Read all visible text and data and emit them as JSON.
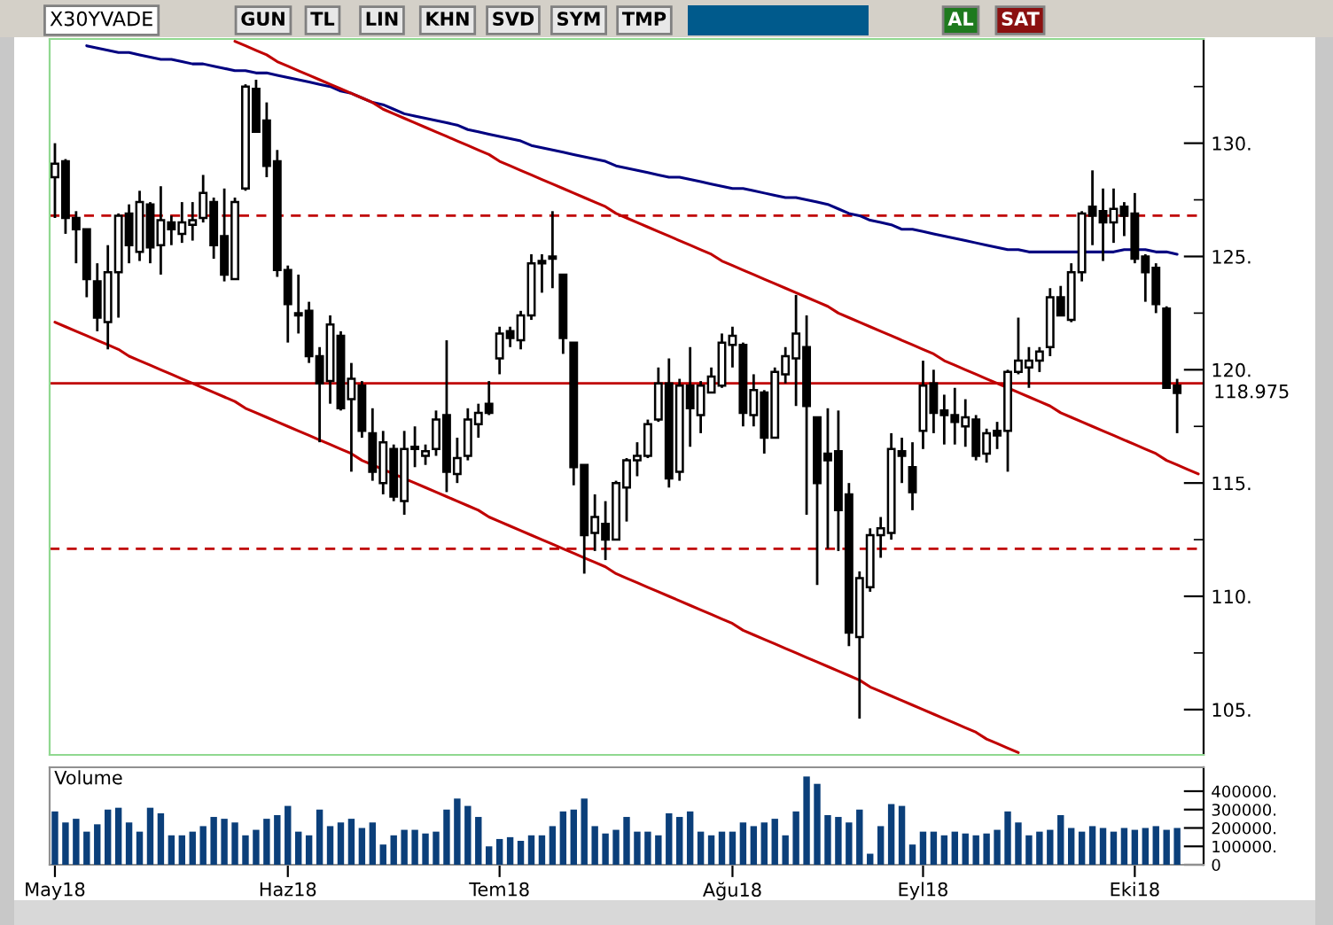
{
  "chart_data": [
    {
      "type": "candlestick",
      "title": "X30YVADE",
      "categories": [
        null,
        null,
        null,
        null,
        null,
        null,
        null,
        null,
        null,
        null,
        null,
        null,
        null,
        null,
        null,
        null,
        null,
        null,
        null,
        null,
        null,
        null,
        null,
        null,
        null,
        null,
        null,
        null,
        null,
        null,
        null,
        null,
        null,
        null,
        null,
        null,
        null,
        null,
        null,
        null,
        null,
        null,
        null,
        null,
        null,
        null,
        null,
        null,
        null,
        null,
        null,
        null,
        null,
        null,
        null,
        null,
        null,
        null,
        null,
        null,
        null,
        null,
        null,
        null,
        null,
        null,
        null,
        null,
        null,
        null,
        null,
        null,
        null,
        null,
        null,
        null,
        null,
        null,
        null,
        null,
        null,
        null,
        null,
        null,
        null,
        null,
        null,
        null,
        null,
        null,
        null,
        null,
        null,
        null,
        null,
        null,
        null,
        null,
        null,
        null,
        null,
        null,
        null,
        null,
        null,
        null,
        null,
        null,
        null
      ],
      "ohlc": [
        [
          128.5,
          130.0,
          126.7,
          129.1
        ],
        [
          129.2,
          129.3,
          126.0,
          126.7
        ],
        [
          126.7,
          127.0,
          124.7,
          126.2
        ],
        [
          126.2,
          126.2,
          123.2,
          124.0
        ],
        [
          123.9,
          124.7,
          121.7,
          122.3
        ],
        [
          122.1,
          125.5,
          120.9,
          124.3
        ],
        [
          124.3,
          126.9,
          122.3,
          126.8
        ],
        [
          126.9,
          127.3,
          124.7,
          125.5
        ],
        [
          125.2,
          127.9,
          124.8,
          127.4
        ],
        [
          127.3,
          127.4,
          124.7,
          125.4
        ],
        [
          125.5,
          128.1,
          124.2,
          126.6
        ],
        [
          126.5,
          126.8,
          125.5,
          126.2
        ],
        [
          126.0,
          127.4,
          125.6,
          126.5
        ],
        [
          126.4,
          127.4,
          125.7,
          126.6
        ],
        [
          126.7,
          128.6,
          126.5,
          127.8
        ],
        [
          127.4,
          127.6,
          124.9,
          125.5
        ],
        [
          125.9,
          128.0,
          123.9,
          124.2
        ],
        [
          124.0,
          127.6,
          124.0,
          127.4
        ],
        [
          128.0,
          132.6,
          127.9,
          132.5
        ],
        [
          132.4,
          132.8,
          130.5,
          130.5
        ],
        [
          131.0,
          131.8,
          128.5,
          129.0
        ],
        [
          129.2,
          129.7,
          124.1,
          124.4
        ],
        [
          124.4,
          124.6,
          121.2,
          122.9
        ],
        [
          122.5,
          124.2,
          121.6,
          122.4
        ],
        [
          122.6,
          123.0,
          120.3,
          120.6
        ],
        [
          120.6,
          121.0,
          116.8,
          119.4
        ],
        [
          119.5,
          122.4,
          118.5,
          122.0
        ],
        [
          121.5,
          121.7,
          118.2,
          118.3
        ],
        [
          118.7,
          120.3,
          115.5,
          119.6
        ],
        [
          119.3,
          119.5,
          117.0,
          117.3
        ],
        [
          117.2,
          118.3,
          115.1,
          115.5
        ],
        [
          115.0,
          117.3,
          114.5,
          116.8
        ],
        [
          116.5,
          116.7,
          114.2,
          114.4
        ],
        [
          114.2,
          117.3,
          113.6,
          116.5
        ],
        [
          116.6,
          117.5,
          115.7,
          116.5
        ],
        [
          116.2,
          116.7,
          115.8,
          116.4
        ],
        [
          116.5,
          118.2,
          116.2,
          117.8
        ],
        [
          118.0,
          121.3,
          114.6,
          115.5
        ],
        [
          115.4,
          117.0,
          115.0,
          116.1
        ],
        [
          116.2,
          118.3,
          116.0,
          117.8
        ],
        [
          117.6,
          118.5,
          117.0,
          118.1
        ],
        [
          118.5,
          119.5,
          118.0,
          118.1
        ],
        [
          120.5,
          121.9,
          119.8,
          121.6
        ],
        [
          121.7,
          121.9,
          121.0,
          121.4
        ],
        [
          121.3,
          122.6,
          120.9,
          122.4
        ],
        [
          122.4,
          125.1,
          122.2,
          124.7
        ],
        [
          124.8,
          125.1,
          123.4,
          124.7
        ],
        [
          124.9,
          127.0,
          123.6,
          125.0
        ],
        [
          124.2,
          124.2,
          120.7,
          121.4
        ],
        [
          121.2,
          121.2,
          114.9,
          115.7
        ],
        [
          115.8,
          115.8,
          111.0,
          112.7
        ],
        [
          112.8,
          114.5,
          112.0,
          113.5
        ],
        [
          113.2,
          114.2,
          111.6,
          112.5
        ],
        [
          112.5,
          115.1,
          112.5,
          115.0
        ],
        [
          114.8,
          116.1,
          113.3,
          116.0
        ],
        [
          116.0,
          116.8,
          115.3,
          116.2
        ],
        [
          116.2,
          117.8,
          116.1,
          117.6
        ],
        [
          117.8,
          120.1,
          117.7,
          119.4
        ],
        [
          119.4,
          120.5,
          114.8,
          115.2
        ],
        [
          115.5,
          119.6,
          115.1,
          119.3
        ],
        [
          119.3,
          121.0,
          116.6,
          118.3
        ],
        [
          118.0,
          119.5,
          117.2,
          119.3
        ],
        [
          119.0,
          120.1,
          119.0,
          119.7
        ],
        [
          119.3,
          121.6,
          119.2,
          121.2
        ],
        [
          121.1,
          121.9,
          120.1,
          121.5
        ],
        [
          121.1,
          121.2,
          117.5,
          118.1
        ],
        [
          118.0,
          119.8,
          117.5,
          119.1
        ],
        [
          119.0,
          119.1,
          116.3,
          117.0
        ],
        [
          117.0,
          120.1,
          117.0,
          119.9
        ],
        [
          119.8,
          121.0,
          119.4,
          120.6
        ],
        [
          120.5,
          123.3,
          118.4,
          121.6
        ],
        [
          121.0,
          122.4,
          113.6,
          118.4
        ],
        [
          117.9,
          117.9,
          110.5,
          115.0
        ],
        [
          116.3,
          118.3,
          112.1,
          116.0
        ],
        [
          116.4,
          118.2,
          112.0,
          113.8
        ],
        [
          114.5,
          115.0,
          107.8,
          108.4
        ],
        [
          108.2,
          111.1,
          104.6,
          110.8
        ],
        [
          110.4,
          113.0,
          110.2,
          112.7
        ],
        [
          112.7,
          113.5,
          111.7,
          113.0
        ],
        [
          112.8,
          117.2,
          112.5,
          116.5
        ],
        [
          116.4,
          117.0,
          115.0,
          116.2
        ],
        [
          115.7,
          116.8,
          113.8,
          114.6
        ],
        [
          117.3,
          120.4,
          116.5,
          119.3
        ],
        [
          119.4,
          120.0,
          117.2,
          118.1
        ],
        [
          118.2,
          118.9,
          116.7,
          118.0
        ],
        [
          118.0,
          119.2,
          116.7,
          117.7
        ],
        [
          117.5,
          118.7,
          116.6,
          117.9
        ],
        [
          117.8,
          118.0,
          116.0,
          116.2
        ],
        [
          116.3,
          117.4,
          115.9,
          117.2
        ],
        [
          117.3,
          117.7,
          116.5,
          117.1
        ],
        [
          117.3,
          120.0,
          115.5,
          119.9
        ],
        [
          119.9,
          122.3,
          119.8,
          120.4
        ],
        [
          120.1,
          121.0,
          119.2,
          120.4
        ],
        [
          120.4,
          121.0,
          119.9,
          120.8
        ],
        [
          121.0,
          123.6,
          120.6,
          123.2
        ],
        [
          123.2,
          123.7,
          122.4,
          122.4
        ],
        [
          122.2,
          124.7,
          122.1,
          124.3
        ],
        [
          124.3,
          127.0,
          123.9,
          126.9
        ],
        [
          127.2,
          128.8,
          125.5,
          126.8
        ],
        [
          127.0,
          128.0,
          124.8,
          126.5
        ],
        [
          126.5,
          128.0,
          125.6,
          127.1
        ],
        [
          127.2,
          127.4,
          125.9,
          126.8
        ],
        [
          126.9,
          127.8,
          124.7,
          124.9
        ],
        [
          125.0,
          125.1,
          123.0,
          124.3
        ],
        [
          124.5,
          124.7,
          122.5,
          122.9
        ],
        [
          122.7,
          122.8,
          119.2,
          119.2
        ],
        [
          119.3,
          119.6,
          117.2,
          118.975
        ],
        null,
        null
      ],
      "series": [
        {
          "type": "line",
          "color": "#000080",
          "values": [
            null,
            null,
            null,
            134.3,
            134.2,
            134.1,
            134.0,
            134.0,
            133.9,
            133.8,
            133.7,
            133.7,
            133.6,
            133.5,
            133.5,
            133.4,
            133.3,
            133.2,
            133.2,
            133.1,
            133.1,
            133.0,
            132.9,
            132.8,
            132.7,
            132.6,
            132.5,
            132.3,
            132.2,
            132.0,
            131.8,
            131.7,
            131.5,
            131.3,
            131.2,
            131.1,
            131.0,
            130.9,
            130.8,
            130.6,
            130.5,
            130.4,
            130.3,
            130.2,
            130.1,
            129.9,
            129.8,
            129.7,
            129.6,
            129.5,
            129.4,
            129.3,
            129.2,
            129.0,
            128.9,
            128.8,
            128.7,
            128.6,
            128.5,
            128.5,
            128.4,
            128.3,
            128.2,
            128.1,
            128.0,
            128.0,
            127.9,
            127.8,
            127.7,
            127.6,
            127.6,
            127.5,
            127.4,
            127.3,
            127.1,
            126.9,
            126.8,
            126.6,
            126.5,
            126.4,
            126.2,
            126.2,
            126.1,
            126.0,
            125.9,
            125.8,
            125.7,
            125.6,
            125.5,
            125.4,
            125.3,
            125.3,
            125.2,
            125.2,
            125.2,
            125.2,
            125.2,
            125.2,
            125.2,
            125.2,
            125.2,
            125.3,
            125.3,
            125.3,
            125.2,
            125.2,
            125.1,
            null,
            null
          ]
        },
        {
          "type": "line",
          "color": "#c00000",
          "values": [
            null,
            null,
            null,
            null,
            null,
            null,
            null,
            null,
            null,
            null,
            null,
            null,
            null,
            null,
            null,
            null,
            null,
            134.5,
            134.3,
            134.1,
            133.9,
            133.6,
            133.4,
            133.2,
            133.0,
            132.8,
            132.6,
            132.4,
            132.2,
            132.0,
            131.8,
            131.5,
            131.3,
            131.1,
            130.9,
            130.7,
            130.5,
            130.3,
            130.1,
            129.9,
            129.7,
            129.5,
            129.2,
            129.0,
            128.8,
            128.6,
            128.4,
            128.2,
            128.0,
            127.8,
            127.6,
            127.4,
            127.2,
            126.9,
            126.7,
            126.5,
            126.3,
            126.1,
            125.9,
            125.7,
            125.5,
            125.3,
            125.1,
            124.8,
            124.6,
            124.4,
            124.2,
            124.0,
            123.8,
            123.6,
            123.4,
            123.2,
            123.0,
            122.8,
            122.5,
            122.3,
            122.1,
            121.9,
            121.7,
            121.5,
            121.3,
            121.1,
            120.9,
            120.7,
            120.4,
            120.2,
            120.0,
            119.8,
            119.6,
            119.4,
            119.2,
            119.0,
            118.8,
            118.6,
            118.4,
            118.1,
            117.9,
            117.7,
            117.5,
            117.3,
            117.1,
            116.9,
            116.7,
            116.5,
            116.3,
            116.0,
            115.8,
            115.6,
            115.4
          ]
        },
        {
          "type": "line",
          "color": "#c00000",
          "values": [
            122.1,
            121.9,
            121.7,
            121.5,
            121.3,
            121.1,
            120.9,
            120.6,
            120.4,
            120.2,
            120.0,
            119.8,
            119.6,
            119.4,
            119.2,
            119.0,
            118.8,
            118.6,
            118.3,
            118.1,
            117.9,
            117.7,
            117.5,
            117.3,
            117.1,
            116.9,
            116.7,
            116.5,
            116.3,
            116.0,
            115.8,
            115.6,
            115.4,
            115.2,
            115.0,
            114.8,
            114.6,
            114.4,
            114.2,
            114.0,
            113.8,
            113.5,
            113.3,
            113.1,
            112.9,
            112.7,
            112.5,
            112.3,
            112.1,
            111.9,
            111.7,
            111.5,
            111.3,
            111.0,
            110.8,
            110.6,
            110.4,
            110.2,
            110.0,
            109.8,
            109.6,
            109.4,
            109.2,
            109.0,
            108.8,
            108.5,
            108.3,
            108.1,
            107.9,
            107.7,
            107.5,
            107.3,
            107.1,
            106.9,
            106.7,
            106.5,
            106.3,
            106.0,
            105.8,
            105.6,
            105.4,
            105.2,
            105.0,
            104.8,
            104.6,
            104.4,
            104.2,
            104.0,
            103.7,
            103.5,
            103.3,
            103.1,
            null,
            null,
            null,
            null,
            null,
            null,
            null,
            null,
            null,
            null,
            null,
            null,
            null,
            null,
            null,
            null,
            null
          ]
        }
      ],
      "ref_lines": [
        {
          "axis": "y",
          "value": 119.4,
          "color": "#c00000",
          "line_style": "solid"
        },
        {
          "axis": "y",
          "value": 126.8,
          "color": "#c00000",
          "line_style": "dashed"
        },
        {
          "axis": "y",
          "value": 112.1,
          "color": "#c00000",
          "line_style": "dashed"
        }
      ],
      "ylim": [
        103.0,
        134.6
      ],
      "yticks": [
        {
          "value": 105,
          "label": "105."
        },
        {
          "value": 107.5,
          "label": null
        },
        {
          "value": 110,
          "label": "110."
        },
        {
          "value": 112.5,
          "label": null
        },
        {
          "value": 115,
          "label": "115."
        },
        {
          "value": 117.5,
          "label": null
        },
        {
          "value": 120,
          "label": "120."
        },
        {
          "value": 122.5,
          "label": null
        },
        {
          "value": 125,
          "label": "125."
        },
        {
          "value": 127.5,
          "label": null
        },
        {
          "value": 130,
          "label": "130."
        },
        {
          "value": 132.5,
          "label": null
        }
      ],
      "annotations": [
        "GUN",
        "TL",
        "LIN",
        "KHN",
        "SVD",
        "SYM",
        "TMP",
        "AL",
        "SAT",
        "118.975"
      ]
    },
    {
      "type": "bar",
      "title": "Volume",
      "categories": [
        "May18",
        null,
        null,
        null,
        null,
        null,
        null,
        null,
        null,
        null,
        null,
        null,
        null,
        null,
        null,
        null,
        null,
        null,
        null,
        null,
        null,
        null,
        "Haz18",
        null,
        null,
        null,
        null,
        null,
        null,
        null,
        null,
        null,
        null,
        null,
        null,
        null,
        null,
        null,
        null,
        null,
        null,
        null,
        "Tem18",
        null,
        null,
        null,
        null,
        null,
        null,
        null,
        null,
        null,
        null,
        null,
        null,
        null,
        null,
        null,
        null,
        null,
        null,
        null,
        null,
        null,
        "Ağu18",
        null,
        null,
        null,
        null,
        null,
        null,
        null,
        null,
        null,
        null,
        null,
        null,
        null,
        null,
        null,
        null,
        null,
        "Eyl18",
        null,
        null,
        null,
        null,
        null,
        null,
        null,
        null,
        null,
        null,
        null,
        null,
        null,
        null,
        null,
        null,
        null,
        null,
        null,
        "Eki18",
        null,
        null,
        null,
        null,
        null,
        null
      ],
      "values": [
        290000,
        230000,
        250000,
        180000,
        220000,
        300000,
        310000,
        230000,
        180000,
        310000,
        280000,
        160000,
        160000,
        180000,
        210000,
        260000,
        250000,
        230000,
        160000,
        190000,
        250000,
        270000,
        320000,
        180000,
        160000,
        300000,
        210000,
        230000,
        250000,
        200000,
        230000,
        110000,
        160000,
        190000,
        190000,
        170000,
        180000,
        300000,
        360000,
        320000,
        260000,
        100000,
        140000,
        150000,
        130000,
        160000,
        160000,
        210000,
        290000,
        300000,
        360000,
        210000,
        170000,
        190000,
        260000,
        180000,
        180000,
        160000,
        280000,
        260000,
        290000,
        180000,
        160000,
        180000,
        180000,
        230000,
        210000,
        230000,
        250000,
        160000,
        290000,
        480000,
        440000,
        270000,
        260000,
        230000,
        300000,
        60000,
        210000,
        330000,
        320000,
        110000,
        180000,
        180000,
        160000,
        180000,
        170000,
        160000,
        170000,
        190000,
        290000,
        230000,
        160000,
        180000,
        190000,
        270000,
        200000,
        180000,
        210000,
        200000,
        180000,
        200000,
        190000,
        200000,
        210000,
        190000,
        200000,
        null,
        null
      ],
      "color": "#0b3f7a",
      "ylim": [
        0,
        530000
      ],
      "yticks": [
        {
          "value": 0,
          "label": "0"
        },
        {
          "value": 100000,
          "label": "100000."
        },
        {
          "value": 200000,
          "label": "200000."
        },
        {
          "value": 300000,
          "label": "300000."
        },
        {
          "value": 400000,
          "label": "400000."
        }
      ]
    }
  ]
}
